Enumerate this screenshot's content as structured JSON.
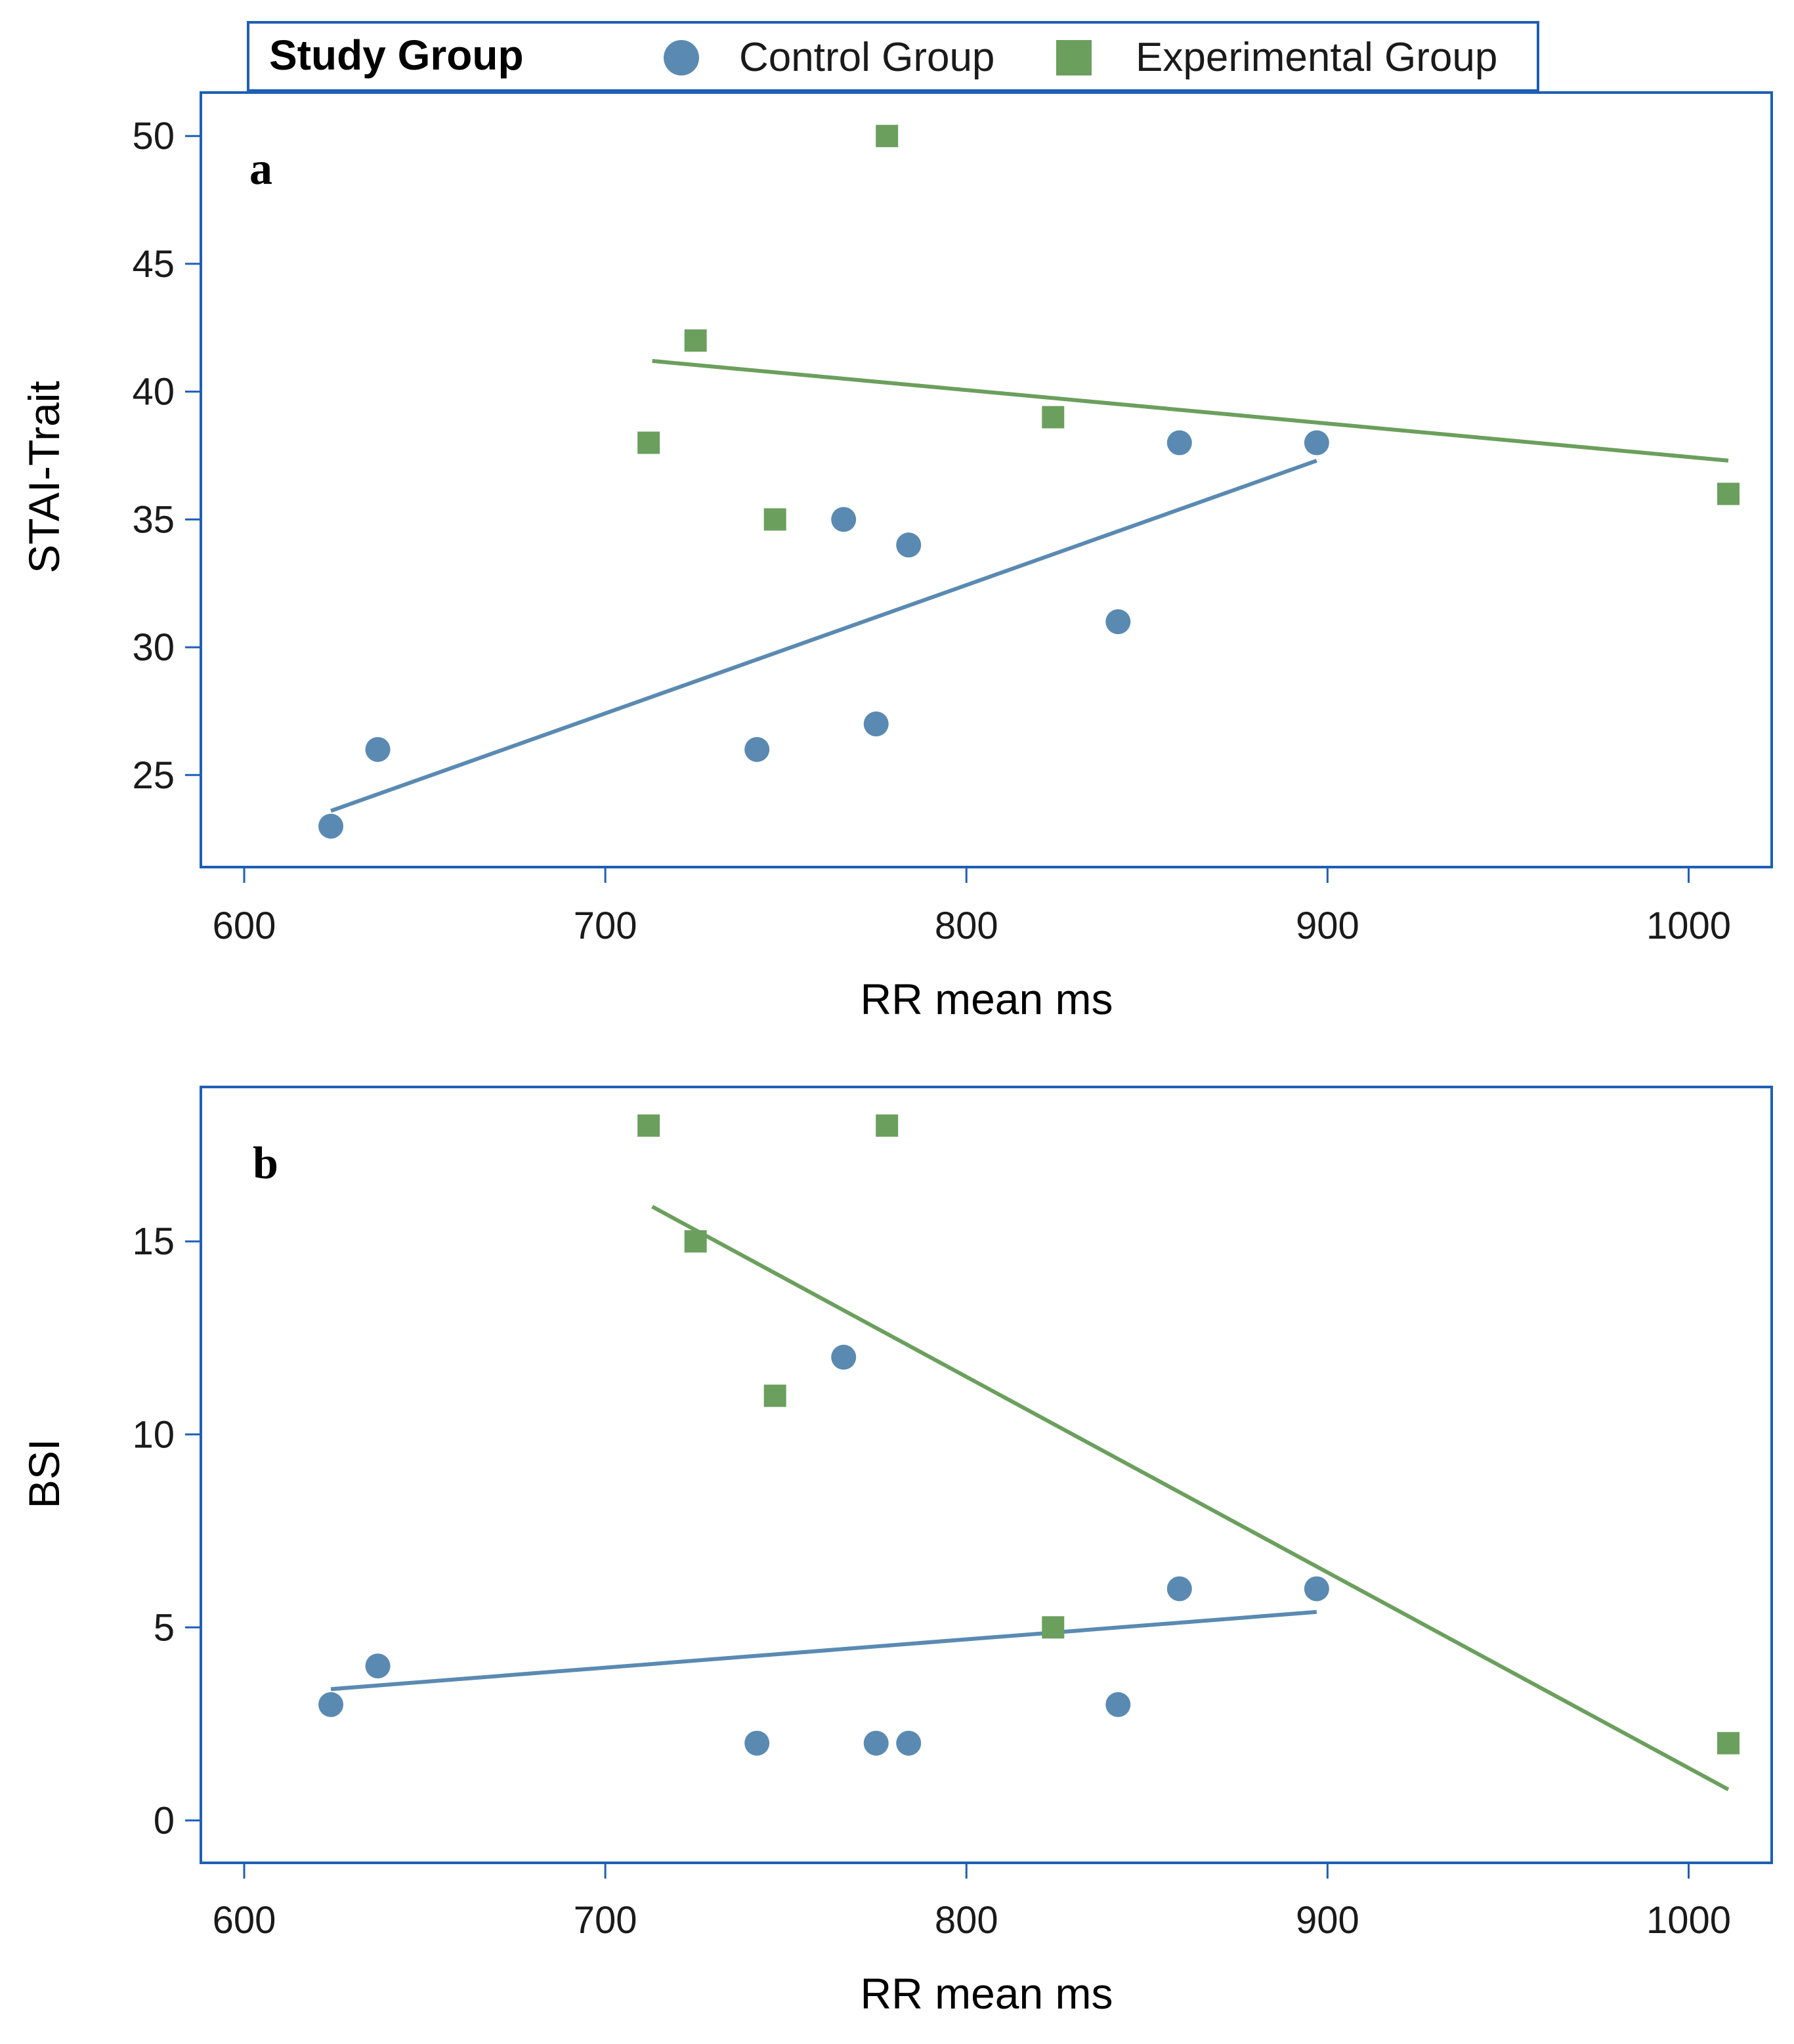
{
  "legend": {
    "title": "Study Group",
    "entries": [
      {
        "name": "Control Group",
        "marker": "circle",
        "color": "#5a8ab2"
      },
      {
        "name": "Experimental Group",
        "marker": "square",
        "color": "#6b9f5d"
      }
    ]
  },
  "chart_data": [
    {
      "type": "scatter",
      "panel_label": "a",
      "xlabel": "RR mean ms",
      "ylabel": "STAI-Trait",
      "xlim": [
        588,
        1023
      ],
      "ylim": [
        21.4,
        51.7
      ],
      "xticks": [
        600,
        700,
        800,
        900,
        1000
      ],
      "yticks": [
        25,
        30,
        35,
        40,
        45,
        50
      ],
      "series": [
        {
          "name": "Control Group",
          "marker": "circle",
          "color": "#5a8ab2",
          "points": [
            [
              624,
              23
            ],
            [
              637,
              26
            ],
            [
              742,
              26
            ],
            [
              766,
              35
            ],
            [
              775,
              27
            ],
            [
              784,
              34
            ],
            [
              842,
              31
            ],
            [
              859,
              38
            ],
            [
              897,
              38
            ]
          ],
          "fit": [
            [
              624,
              23.6
            ],
            [
              897,
              37.3
            ]
          ]
        },
        {
          "name": "Experimental Group",
          "marker": "square",
          "color": "#6b9f5d",
          "points": [
            [
              712,
              38
            ],
            [
              725,
              42
            ],
            [
              747,
              35
            ],
            [
              778,
              50
            ],
            [
              824,
              39
            ],
            [
              1011,
              36
            ]
          ],
          "fit": [
            [
              713,
              41.2
            ],
            [
              1011,
              37.3
            ]
          ]
        }
      ]
    },
    {
      "type": "scatter",
      "panel_label": "b",
      "xlabel": "RR mean ms",
      "ylabel": "BSI",
      "xlim": [
        588,
        1023
      ],
      "ylim": [
        -1.1,
        19.0
      ],
      "xticks": [
        600,
        700,
        800,
        900,
        1000
      ],
      "yticks": [
        0,
        5,
        10,
        15
      ],
      "series": [
        {
          "name": "Control Group",
          "marker": "circle",
          "color": "#5a8ab2",
          "points": [
            [
              624,
              3
            ],
            [
              637,
              4
            ],
            [
              742,
              2
            ],
            [
              766,
              12
            ],
            [
              775,
              2
            ],
            [
              784,
              2
            ],
            [
              842,
              3
            ],
            [
              859,
              6
            ],
            [
              897,
              6
            ]
          ],
          "fit": [
            [
              624,
              3.4
            ],
            [
              897,
              5.4
            ]
          ]
        },
        {
          "name": "Experimental Group",
          "marker": "square",
          "color": "#6b9f5d",
          "points": [
            [
              712,
              18
            ],
            [
              725,
              15
            ],
            [
              747,
              11
            ],
            [
              778,
              18
            ],
            [
              824,
              5
            ],
            [
              1011,
              2
            ]
          ],
          "fit": [
            [
              713,
              15.9
            ],
            [
              1011,
              0.8
            ]
          ]
        }
      ]
    }
  ]
}
